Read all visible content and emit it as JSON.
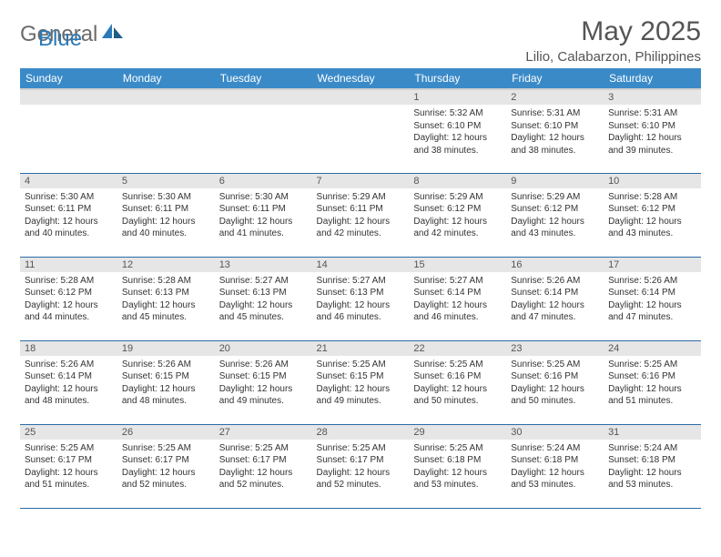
{
  "logo": {
    "text1": "General",
    "text2": "Blue"
  },
  "title": "May 2025",
  "location": "Lilio, Calabarzon, Philippines",
  "colors": {
    "header_bg": "#3a8ac8",
    "header_text": "#ffffff",
    "daynum_bg": "#e6e6e6",
    "row_border": "#2a6ca8",
    "logo_gray": "#6b6b6b",
    "logo_blue": "#2a7ab8",
    "text": "#333333",
    "title_color": "#555555"
  },
  "weekdays": [
    "Sunday",
    "Monday",
    "Tuesday",
    "Wednesday",
    "Thursday",
    "Friday",
    "Saturday"
  ],
  "weeks": [
    [
      null,
      null,
      null,
      null,
      {
        "n": "1",
        "sr": "5:32 AM",
        "ss": "6:10 PM",
        "dl": "12 hours and 38 minutes."
      },
      {
        "n": "2",
        "sr": "5:31 AM",
        "ss": "6:10 PM",
        "dl": "12 hours and 38 minutes."
      },
      {
        "n": "3",
        "sr": "5:31 AM",
        "ss": "6:10 PM",
        "dl": "12 hours and 39 minutes."
      }
    ],
    [
      {
        "n": "4",
        "sr": "5:30 AM",
        "ss": "6:11 PM",
        "dl": "12 hours and 40 minutes."
      },
      {
        "n": "5",
        "sr": "5:30 AM",
        "ss": "6:11 PM",
        "dl": "12 hours and 40 minutes."
      },
      {
        "n": "6",
        "sr": "5:30 AM",
        "ss": "6:11 PM",
        "dl": "12 hours and 41 minutes."
      },
      {
        "n": "7",
        "sr": "5:29 AM",
        "ss": "6:11 PM",
        "dl": "12 hours and 42 minutes."
      },
      {
        "n": "8",
        "sr": "5:29 AM",
        "ss": "6:12 PM",
        "dl": "12 hours and 42 minutes."
      },
      {
        "n": "9",
        "sr": "5:29 AM",
        "ss": "6:12 PM",
        "dl": "12 hours and 43 minutes."
      },
      {
        "n": "10",
        "sr": "5:28 AM",
        "ss": "6:12 PM",
        "dl": "12 hours and 43 minutes."
      }
    ],
    [
      {
        "n": "11",
        "sr": "5:28 AM",
        "ss": "6:12 PM",
        "dl": "12 hours and 44 minutes."
      },
      {
        "n": "12",
        "sr": "5:28 AM",
        "ss": "6:13 PM",
        "dl": "12 hours and 45 minutes."
      },
      {
        "n": "13",
        "sr": "5:27 AM",
        "ss": "6:13 PM",
        "dl": "12 hours and 45 minutes."
      },
      {
        "n": "14",
        "sr": "5:27 AM",
        "ss": "6:13 PM",
        "dl": "12 hours and 46 minutes."
      },
      {
        "n": "15",
        "sr": "5:27 AM",
        "ss": "6:14 PM",
        "dl": "12 hours and 46 minutes."
      },
      {
        "n": "16",
        "sr": "5:26 AM",
        "ss": "6:14 PM",
        "dl": "12 hours and 47 minutes."
      },
      {
        "n": "17",
        "sr": "5:26 AM",
        "ss": "6:14 PM",
        "dl": "12 hours and 47 minutes."
      }
    ],
    [
      {
        "n": "18",
        "sr": "5:26 AM",
        "ss": "6:14 PM",
        "dl": "12 hours and 48 minutes."
      },
      {
        "n": "19",
        "sr": "5:26 AM",
        "ss": "6:15 PM",
        "dl": "12 hours and 48 minutes."
      },
      {
        "n": "20",
        "sr": "5:26 AM",
        "ss": "6:15 PM",
        "dl": "12 hours and 49 minutes."
      },
      {
        "n": "21",
        "sr": "5:25 AM",
        "ss": "6:15 PM",
        "dl": "12 hours and 49 minutes."
      },
      {
        "n": "22",
        "sr": "5:25 AM",
        "ss": "6:16 PM",
        "dl": "12 hours and 50 minutes."
      },
      {
        "n": "23",
        "sr": "5:25 AM",
        "ss": "6:16 PM",
        "dl": "12 hours and 50 minutes."
      },
      {
        "n": "24",
        "sr": "5:25 AM",
        "ss": "6:16 PM",
        "dl": "12 hours and 51 minutes."
      }
    ],
    [
      {
        "n": "25",
        "sr": "5:25 AM",
        "ss": "6:17 PM",
        "dl": "12 hours and 51 minutes."
      },
      {
        "n": "26",
        "sr": "5:25 AM",
        "ss": "6:17 PM",
        "dl": "12 hours and 52 minutes."
      },
      {
        "n": "27",
        "sr": "5:25 AM",
        "ss": "6:17 PM",
        "dl": "12 hours and 52 minutes."
      },
      {
        "n": "28",
        "sr": "5:25 AM",
        "ss": "6:17 PM",
        "dl": "12 hours and 52 minutes."
      },
      {
        "n": "29",
        "sr": "5:25 AM",
        "ss": "6:18 PM",
        "dl": "12 hours and 53 minutes."
      },
      {
        "n": "30",
        "sr": "5:24 AM",
        "ss": "6:18 PM",
        "dl": "12 hours and 53 minutes."
      },
      {
        "n": "31",
        "sr": "5:24 AM",
        "ss": "6:18 PM",
        "dl": "12 hours and 53 minutes."
      }
    ]
  ],
  "labels": {
    "sunrise": "Sunrise: ",
    "sunset": "Sunset: ",
    "daylight": "Daylight: "
  }
}
